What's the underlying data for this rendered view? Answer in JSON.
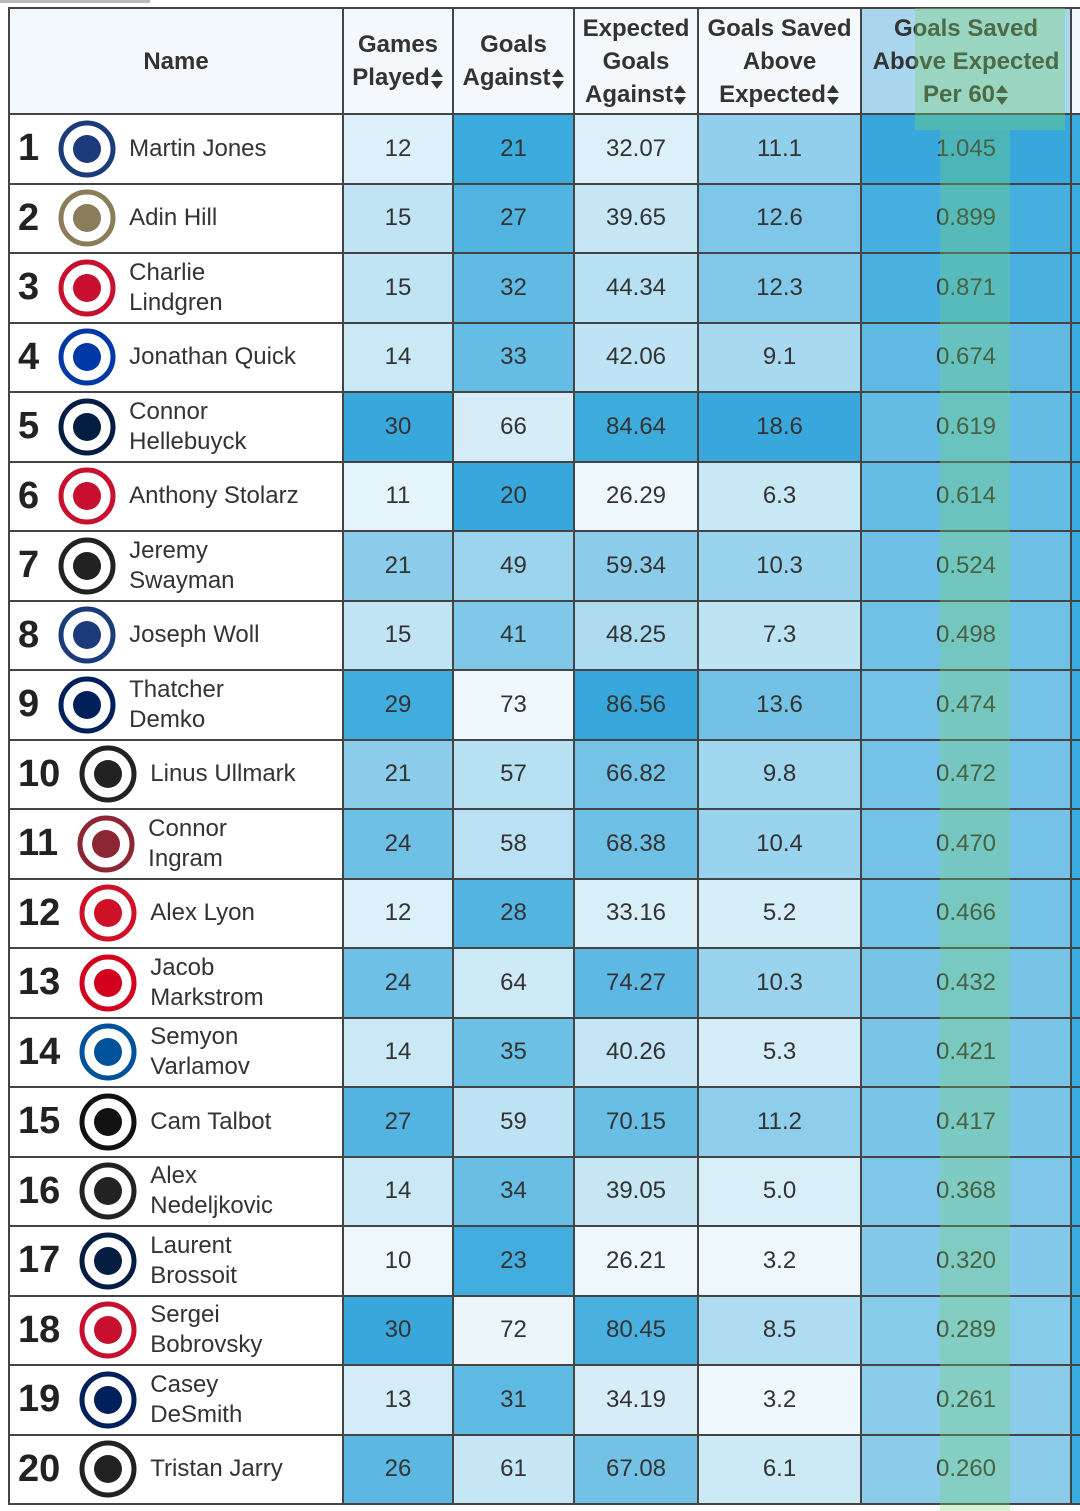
{
  "header": {
    "name": "Name",
    "columns": [
      "Games Played",
      "Goals Against",
      "Expected Goals Against",
      "Goals Saved Above Expected",
      "Goals Saved Above Expected Per 60"
    ]
  },
  "rows": [
    {
      "rank": 1,
      "name": [
        "Martin Jones"
      ],
      "cells": [
        "12",
        "21",
        "32.07",
        "11.1",
        "1.045"
      ]
    },
    {
      "rank": 2,
      "name": [
        "Adin Hill"
      ],
      "cells": [
        "15",
        "27",
        "39.65",
        "12.6",
        "0.899"
      ]
    },
    {
      "rank": 3,
      "name": [
        "Charlie",
        "Lindgren"
      ],
      "cells": [
        "15",
        "32",
        "44.34",
        "12.3",
        "0.871"
      ]
    },
    {
      "rank": 4,
      "name": [
        "Jonathan Quick"
      ],
      "cells": [
        "14",
        "33",
        "42.06",
        "9.1",
        "0.674"
      ]
    },
    {
      "rank": 5,
      "name": [
        "Connor",
        "Hellebuyck"
      ],
      "cells": [
        "30",
        "66",
        "84.64",
        "18.6",
        "0.619"
      ]
    },
    {
      "rank": 6,
      "name": [
        "Anthony Stolarz"
      ],
      "cells": [
        "11",
        "20",
        "26.29",
        "6.3",
        "0.614"
      ]
    },
    {
      "rank": 7,
      "name": [
        "Jeremy",
        "Swayman"
      ],
      "cells": [
        "21",
        "49",
        "59.34",
        "10.3",
        "0.524"
      ]
    },
    {
      "rank": 8,
      "name": [
        "Joseph Woll"
      ],
      "cells": [
        "15",
        "41",
        "48.25",
        "7.3",
        "0.498"
      ]
    },
    {
      "rank": 9,
      "name": [
        "Thatcher",
        "Demko"
      ],
      "cells": [
        "29",
        "73",
        "86.56",
        "13.6",
        "0.474"
      ]
    },
    {
      "rank": 10,
      "name": [
        "Linus Ullmark"
      ],
      "cells": [
        "21",
        "57",
        "66.82",
        "9.8",
        "0.472"
      ]
    },
    {
      "rank": 11,
      "name": [
        "Connor",
        "Ingram"
      ],
      "cells": [
        "24",
        "58",
        "68.38",
        "10.4",
        "0.470"
      ]
    },
    {
      "rank": 12,
      "name": [
        "Alex Lyon"
      ],
      "cells": [
        "12",
        "28",
        "33.16",
        "5.2",
        "0.466"
      ]
    },
    {
      "rank": 13,
      "name": [
        "Jacob",
        "Markstrom"
      ],
      "cells": [
        "24",
        "64",
        "74.27",
        "10.3",
        "0.432"
      ]
    },
    {
      "rank": 14,
      "name": [
        "Semyon",
        "Varlamov"
      ],
      "cells": [
        "14",
        "35",
        "40.26",
        "5.3",
        "0.421"
      ]
    },
    {
      "rank": 15,
      "name": [
        "Cam Talbot"
      ],
      "cells": [
        "27",
        "59",
        "70.15",
        "11.2",
        "0.417"
      ]
    },
    {
      "rank": 16,
      "name": [
        "Alex",
        "Nedeljkovic"
      ],
      "cells": [
        "14",
        "34",
        "39.05",
        "5.0",
        "0.368"
      ]
    },
    {
      "rank": 17,
      "name": [
        "Laurent",
        "Brossoit"
      ],
      "cells": [
        "10",
        "23",
        "26.21",
        "3.2",
        "0.320"
      ]
    },
    {
      "rank": 18,
      "name": [
        "Sergei",
        "Bobrovsky"
      ],
      "cells": [
        "30",
        "72",
        "80.45",
        "8.5",
        "0.289"
      ]
    },
    {
      "rank": 19,
      "name": [
        "Casey",
        "DeSmith"
      ],
      "cells": [
        "13",
        "31",
        "34.19",
        "3.2",
        "0.261"
      ]
    },
    {
      "rank": 20,
      "name": [
        "Tristan Jarry"
      ],
      "cells": [
        "26",
        "61",
        "67.08",
        "6.1",
        "0.260"
      ]
    }
  ]
}
